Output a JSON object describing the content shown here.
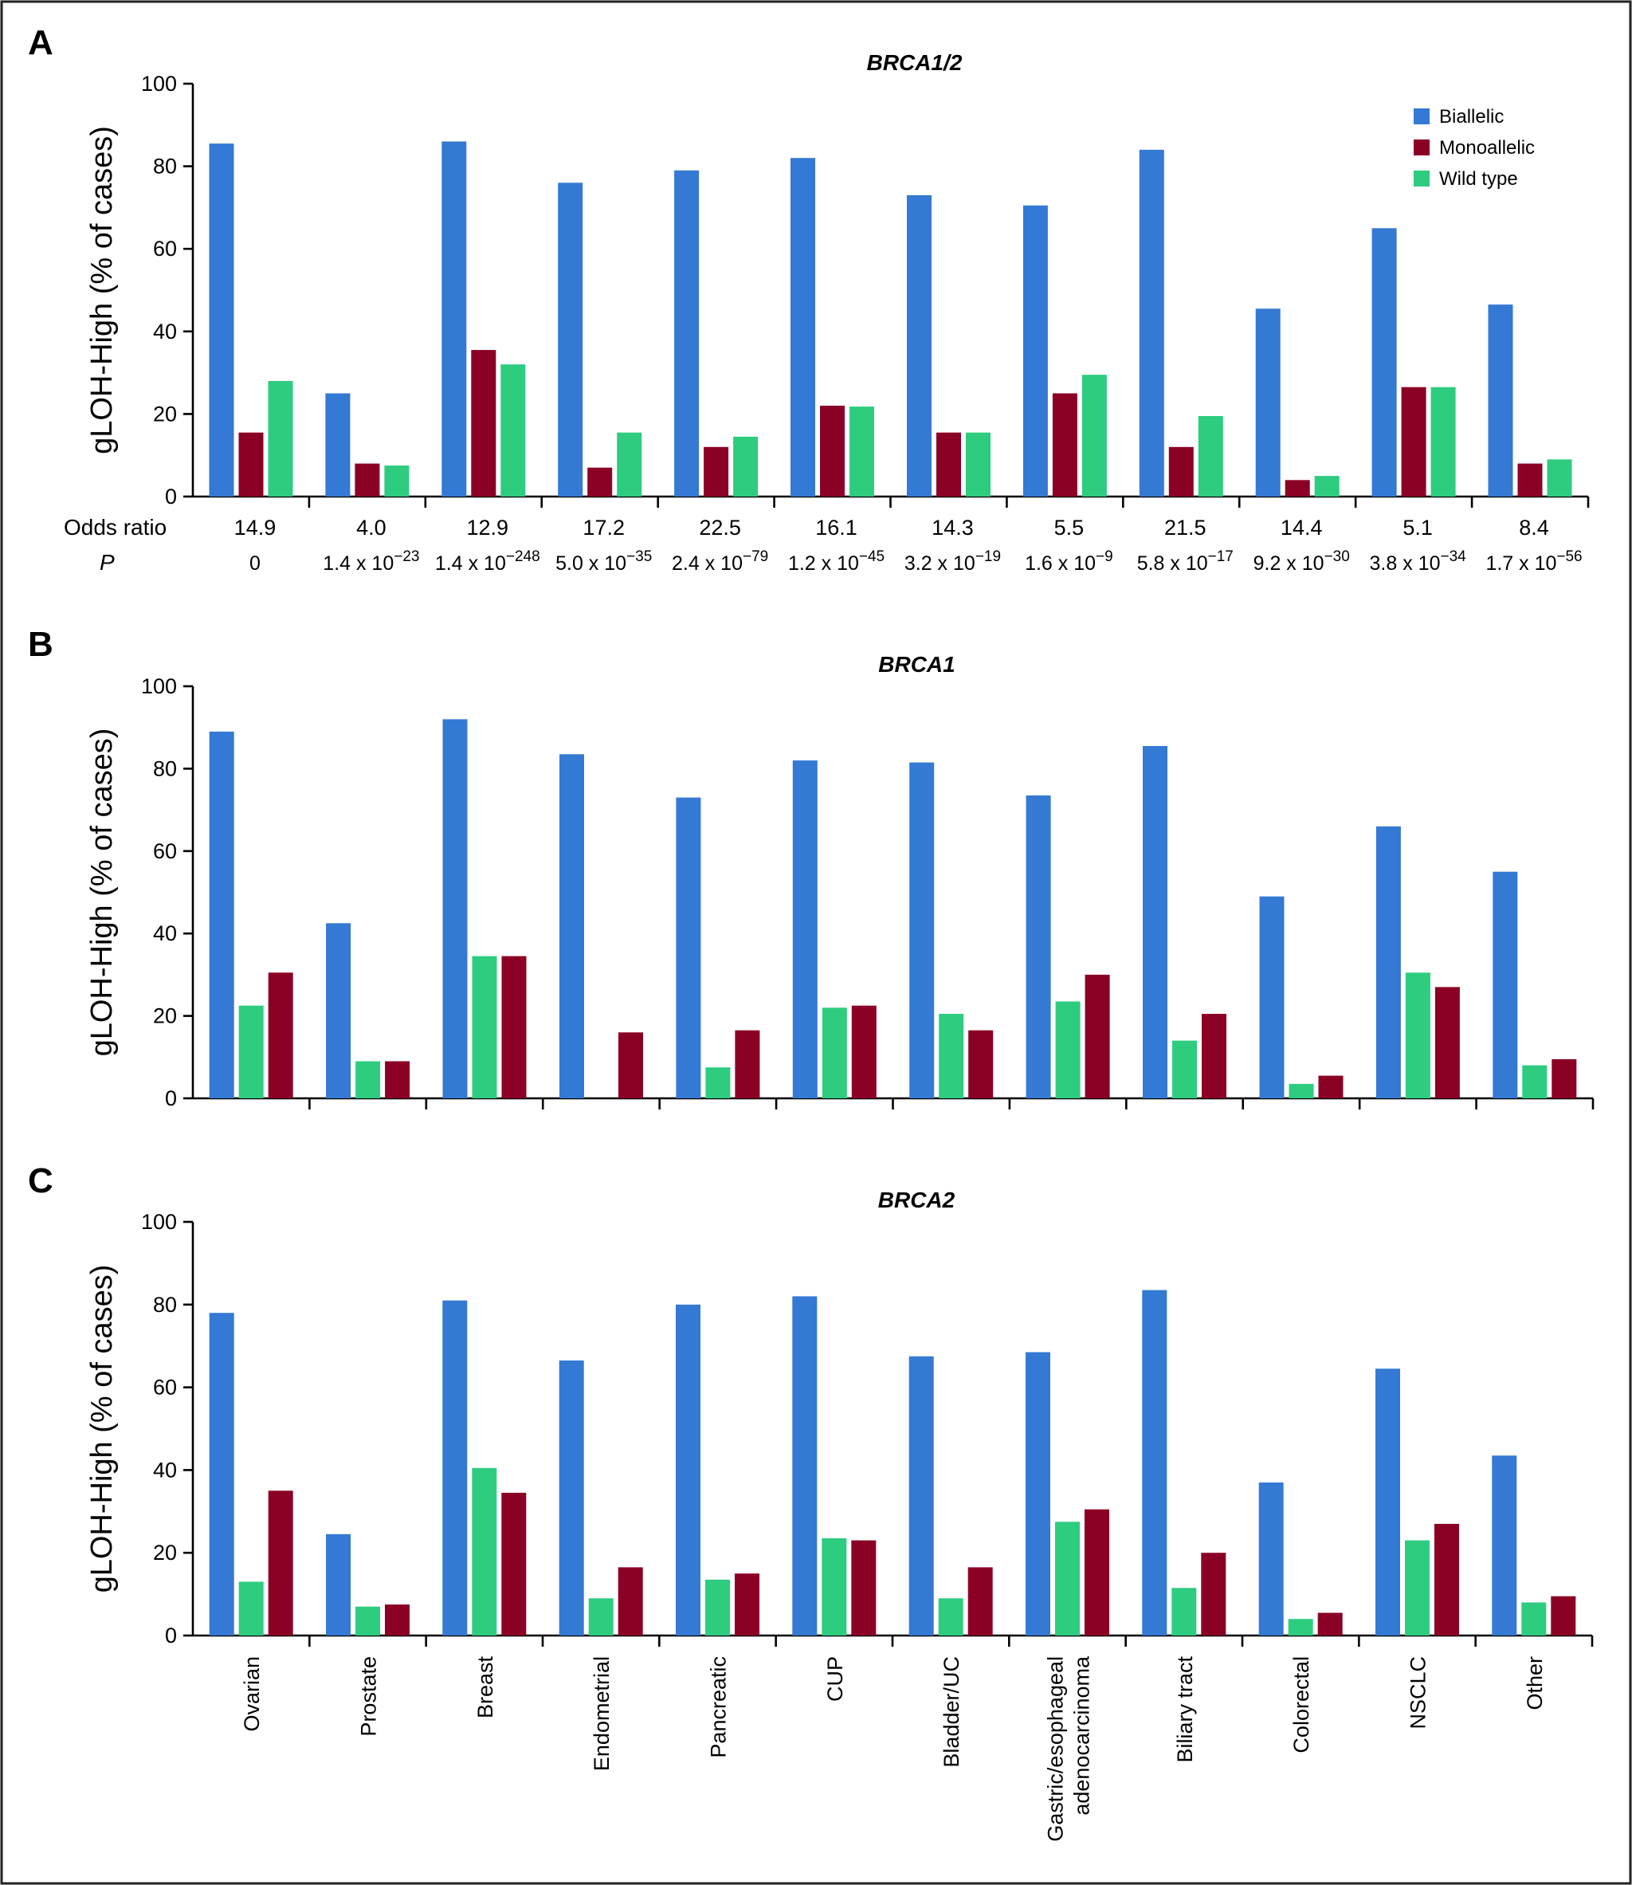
{
  "chart_data": [
    {
      "panel": "A",
      "type": "bar",
      "title": "BRCA1/2",
      "ylabel": "gLOH-High (% of cases)",
      "ylim": [
        0,
        100
      ],
      "yticks": [
        "0",
        "20",
        "40",
        "60",
        "80",
        "100"
      ],
      "categories": [
        "Ovarian",
        "Prostate",
        "Breast",
        "Endometrial",
        "Pancreatic",
        "CUP",
        "Bladder/UC",
        "Gastric/esophageal adenocarcinoma",
        "Biliary tract",
        "Colorectal",
        "NSCLC",
        "Other"
      ],
      "series": [
        {
          "name": "Biallelic",
          "color": "#3479D3",
          "values": [
            85.5,
            25,
            86,
            76,
            79,
            82,
            73,
            70.5,
            84,
            45.5,
            65,
            46.5
          ]
        },
        {
          "name": "Monoallelic",
          "color": "#8B0025",
          "values": [
            15.5,
            8,
            35.5,
            7,
            12,
            22,
            15.5,
            25,
            12,
            4,
            26.5,
            8
          ]
        },
        {
          "name": "Wild type",
          "color": "#2ECC7F",
          "values": [
            28,
            7.5,
            32,
            15.5,
            14.5,
            21.8,
            15.5,
            29.5,
            19.5,
            5,
            26.5,
            9
          ]
        }
      ],
      "legend": {
        "position": "top-right",
        "items": [
          "Biallelic",
          "Monoallelic",
          "Wild type"
        ]
      },
      "odds_ratio_label": "Odds ratio",
      "odds_ratios": [
        "14.9",
        "4.0",
        "12.9",
        "17.2",
        "22.5",
        "16.1",
        "14.3",
        "5.5",
        "21.5",
        "14.4",
        "5.1",
        "8.4"
      ],
      "p_label": "P",
      "p_values": [
        {
          "mantissa": "0",
          "exponent": ""
        },
        {
          "mantissa": "1.4 x 10",
          "exponent": "−23"
        },
        {
          "mantissa": "1.4 x 10",
          "exponent": "−248"
        },
        {
          "mantissa": "5.0 x 10",
          "exponent": "−35"
        },
        {
          "mantissa": "2.4 x 10",
          "exponent": "−79"
        },
        {
          "mantissa": "1.2 x 10",
          "exponent": "−45"
        },
        {
          "mantissa": "3.2 x 10",
          "exponent": "−19"
        },
        {
          "mantissa": "1.6 x 10",
          "exponent": "−9"
        },
        {
          "mantissa": "5.8 x 10",
          "exponent": "−17"
        },
        {
          "mantissa": "9.2 x 10",
          "exponent": "−30"
        },
        {
          "mantissa": "3.8 x 10",
          "exponent": "−34"
        },
        {
          "mantissa": "1.7 x 10",
          "exponent": "−56"
        }
      ]
    },
    {
      "panel": "B",
      "type": "bar",
      "title": "BRCA1",
      "ylabel": "gLOH-High (% of cases)",
      "ylim": [
        0,
        100
      ],
      "yticks": [
        "0",
        "20",
        "40",
        "60",
        "80",
        "100"
      ],
      "categories": [
        "Ovarian",
        "Prostate",
        "Breast",
        "Endometrial",
        "Pancreatic",
        "CUP",
        "Bladder/UC",
        "Gastric/esophageal adenocarcinoma",
        "Biliary tract",
        "Colorectal",
        "NSCLC",
        "Other"
      ],
      "series": [
        {
          "name": "Biallelic",
          "color": "#3479D3",
          "values": [
            89,
            42.5,
            92,
            83.5,
            73,
            82,
            81.5,
            73.5,
            85.5,
            49,
            66,
            55
          ]
        },
        {
          "name": "Wild type",
          "color": "#2ECC7F",
          "values": [
            22.5,
            9,
            34.5,
            null,
            7.5,
            22,
            20.5,
            23.5,
            14,
            3.5,
            30.5,
            8
          ]
        },
        {
          "name": "Monoallelic",
          "color": "#8B0025",
          "values": [
            30.5,
            9,
            34.5,
            16,
            16.5,
            22.5,
            16.5,
            30,
            20.5,
            5.5,
            27,
            9.5
          ]
        }
      ]
    },
    {
      "panel": "C",
      "type": "bar",
      "title": "BRCA2",
      "ylabel": "gLOH-High (% of cases)",
      "ylim": [
        0,
        100
      ],
      "yticks": [
        "0",
        "20",
        "40",
        "60",
        "80",
        "100"
      ],
      "categories": [
        "Ovarian",
        "Prostate",
        "Breast",
        "Endometrial",
        "Pancreatic",
        "CUP",
        "Bladder/UC",
        "Gastric/esophageal adenocarcinoma",
        "Biliary tract",
        "Colorectal",
        "NSCLC",
        "Other"
      ],
      "category_labels": [
        "Ovarian",
        "Prostate",
        "Breast",
        "Endometrial",
        "Pancreatic",
        "CUP",
        "Bladder/UC",
        "Gastric/esophageal|adenocarcinoma",
        "Biliary tract",
        "Colorectal",
        "NSCLC",
        "Other"
      ],
      "series": [
        {
          "name": "Biallelic",
          "color": "#3479D3",
          "values": [
            78,
            24.5,
            81,
            66.5,
            80,
            82,
            67.5,
            68.5,
            83.5,
            37,
            64.5,
            43.5
          ]
        },
        {
          "name": "Wild type",
          "color": "#2ECC7F",
          "values": [
            13,
            7,
            40.5,
            9,
            13.5,
            23.5,
            9,
            27.5,
            11.5,
            4,
            23,
            8
          ]
        },
        {
          "name": "Monoallelic",
          "color": "#8B0025",
          "values": [
            35,
            7.5,
            34.5,
            16.5,
            15,
            23,
            16.5,
            30.5,
            20,
            5.5,
            27,
            9.5
          ]
        }
      ]
    }
  ]
}
